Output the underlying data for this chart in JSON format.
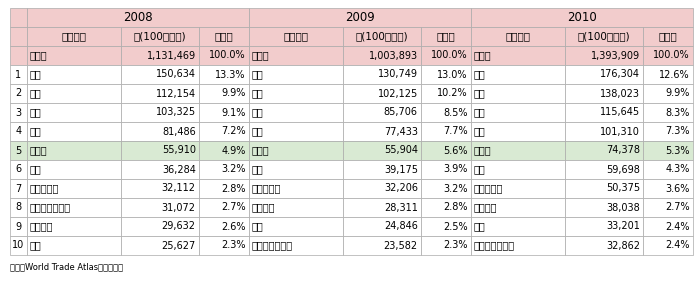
{
  "footer": "資料：World Trade Atlasから作成。",
  "year_headers": [
    "2008",
    "2009",
    "2010"
  ],
  "col_headers": [
    "国・地域",
    "額(100万ドル)",
    "シェア"
  ],
  "row_labels": [
    "",
    "1",
    "2",
    "3",
    "4",
    "5",
    "6",
    "7",
    "8",
    "9",
    "10"
  ],
  "data_2008": [
    [
      "世界計",
      "1,131,469",
      "100.0%"
    ],
    [
      "日本",
      "150,634",
      "13.3%"
    ],
    [
      "韓国",
      "112,154",
      "9.9%"
    ],
    [
      "台湾",
      "103,325",
      "9.1%"
    ],
    [
      "米国",
      "81,486",
      "7.2%"
    ],
    [
      "ドイツ",
      "55,910",
      "4.9%"
    ],
    [
      "豪州",
      "36,284",
      "3.2%"
    ],
    [
      "マレーシア",
      "32,112",
      "2.8%"
    ],
    [
      "サウジアラビア",
      "31,072",
      "2.7%"
    ],
    [
      "ブラジル",
      "29,632",
      "2.6%"
    ],
    [
      "タイ",
      "25,627",
      "2.3%"
    ]
  ],
  "data_2009": [
    [
      "世界計",
      "1,003,893",
      "100.0%"
    ],
    [
      "日本",
      "130,749",
      "13.0%"
    ],
    [
      "韓国",
      "102,125",
      "10.2%"
    ],
    [
      "台湾",
      "85,706",
      "8.5%"
    ],
    [
      "米国",
      "77,433",
      "7.7%"
    ],
    [
      "ドイツ",
      "55,904",
      "5.6%"
    ],
    [
      "豪州",
      "39,175",
      "3.9%"
    ],
    [
      "マレーシア",
      "32,206",
      "3.2%"
    ],
    [
      "ブラジル",
      "28,311",
      "2.8%"
    ],
    [
      "タイ",
      "24,846",
      "2.5%"
    ],
    [
      "サウジアラビア",
      "23,582",
      "2.3%"
    ]
  ],
  "data_2010": [
    [
      "世界計",
      "1,393,909",
      "100.0%"
    ],
    [
      "日本",
      "176,304",
      "12.6%"
    ],
    [
      "韓国",
      "138,023",
      "9.9%"
    ],
    [
      "台湾",
      "115,645",
      "8.3%"
    ],
    [
      "米国",
      "101,310",
      "7.3%"
    ],
    [
      "ドイツ",
      "74,378",
      "5.3%"
    ],
    [
      "豪州",
      "59,698",
      "4.3%"
    ],
    [
      "マレーシア",
      "50,375",
      "3.6%"
    ],
    [
      "ブラジル",
      "38,038",
      "2.7%"
    ],
    [
      "タイ",
      "33,201",
      "2.4%"
    ],
    [
      "サウジアラビア",
      "32,862",
      "2.4%"
    ]
  ],
  "highlight_row": 5,
  "header_bg": "#F2CCCC",
  "highlight_bg": "#D9EAD3",
  "normal_bg": "#FFFFFF",
  "sekai_bg": "#F2CCCC",
  "border_color": "#AAAAAA",
  "text_color": "#000000",
  "font_size": 7.0,
  "header_font_size": 8.5,
  "col_header_font_size": 7.5
}
